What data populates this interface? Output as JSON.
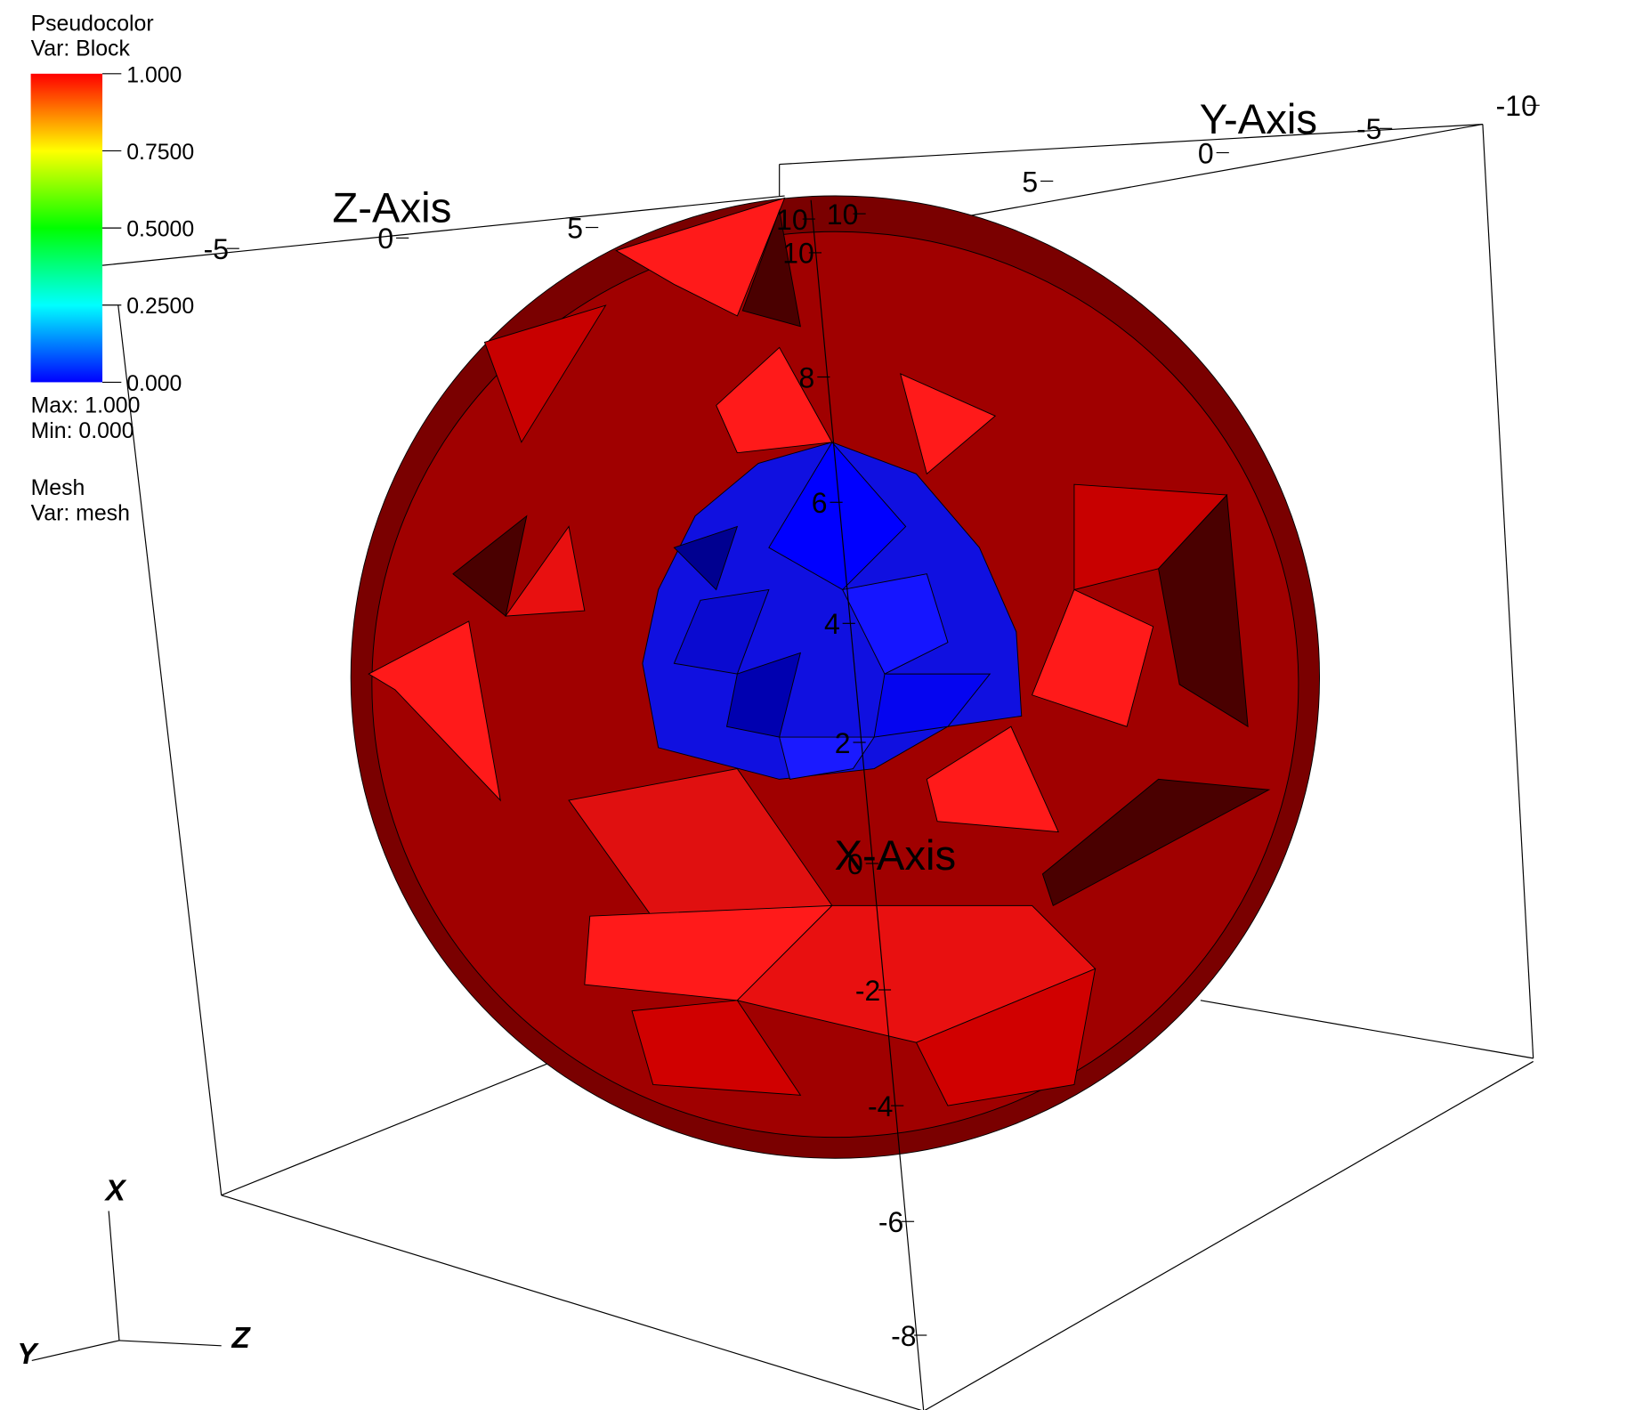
{
  "legend": {
    "plot": "Pseudocolor",
    "var": "Var: Block",
    "ticks": [
      {
        "value": 1,
        "label": "1.000"
      },
      {
        "value": 0.75,
        "label": "0.7500"
      },
      {
        "value": 0.5,
        "label": "0.5000"
      },
      {
        "value": 0.25,
        "label": "0.2500"
      },
      {
        "value": 0,
        "label": "0.000"
      }
    ],
    "range": [
      0,
      1
    ],
    "max": "Max:  1.000",
    "min": "Min:  0.000",
    "colors": [
      "#0000ff",
      "#00ffff",
      "#00ff00",
      "#ffff00",
      "#ff0000"
    ]
  },
  "mesh_legend": {
    "plot": "Mesh",
    "var": "Var: mesh"
  },
  "axes": {
    "x": {
      "title": "X-Axis",
      "ticks": [
        10,
        8,
        6,
        4,
        2,
        0,
        -2,
        -4,
        -6,
        -8
      ]
    },
    "y": {
      "title": "Y-Axis",
      "ticks": [
        10,
        5,
        0,
        -5,
        -10
      ]
    },
    "z": {
      "title": "Z-Axis",
      "ticks": [
        -5,
        0,
        5,
        10
      ]
    }
  },
  "triad": {
    "x": "X",
    "y": "Y",
    "z": "Z"
  }
}
